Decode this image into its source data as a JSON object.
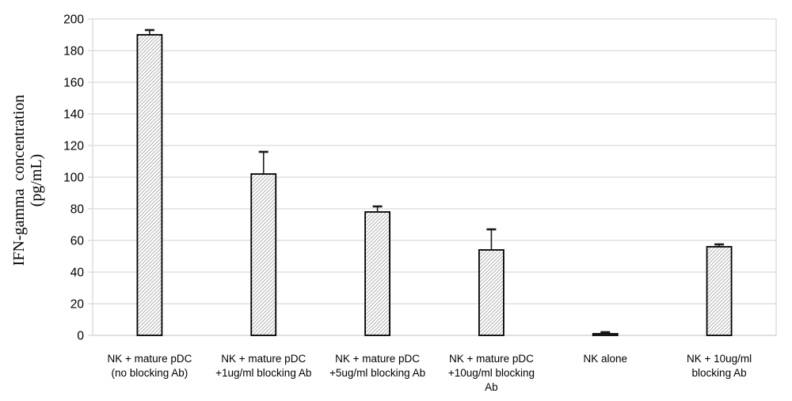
{
  "chart_data": {
    "type": "bar",
    "title": "",
    "ylabel": "IFN-gamma concentration (pg/mL)",
    "ylabel_lines": [
      "IFN-gamma concentration",
      "(pg/mL)"
    ],
    "xlabel": "",
    "ylim": [
      0,
      200
    ],
    "ytick_step": 20,
    "yticks": [
      0,
      20,
      40,
      60,
      80,
      100,
      120,
      140,
      160,
      180,
      200
    ],
    "grid": "horizontal light-gray gridlines at every y tick",
    "legend": "none",
    "bar_style": "white fill with light-gray diagonal hatch, black outline",
    "error_bars": "upper-side only, black stems with caps",
    "categories": [
      "NK + mature pDC\n(no blocking Ab)",
      "NK + mature pDC\n+1ug/ml blocking Ab",
      "NK + mature pDC\n+5ug/ml blocking Ab",
      "NK + mature pDC\n+10ug/ml blocking\nAb",
      "NK alone",
      "NK + 10ug/ml\nblocking Ab"
    ],
    "values": [
      190,
      102,
      78,
      54,
      1,
      56
    ],
    "errors_plus": [
      3,
      14,
      3.5,
      13,
      1,
      1.5
    ],
    "colors": {
      "background": "#ffffff",
      "gridline": "#d9d9d9",
      "axis": "#d9d9d9",
      "bar_outline": "#000000",
      "hatch": "#b3b3b3",
      "error_bar": "#1a1a1a",
      "text": "#000000"
    }
  }
}
